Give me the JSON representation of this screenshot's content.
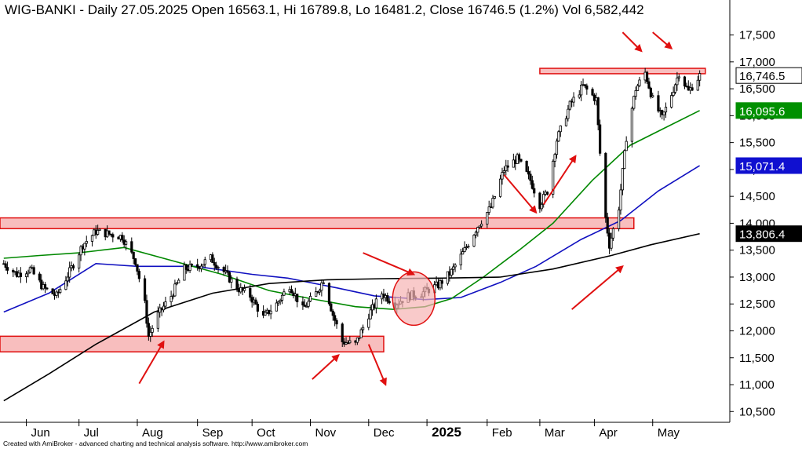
{
  "chart_data": {
    "type": "candlestick",
    "title": "WIG-BANKI - Daily 27.05.2025 Open 16563.1, Hi 16789.8, Lo 16481.2, Close 16746.5 (1.2%) Vol 6,582,442",
    "footer": "Created with AmiBroker - advanced charting and technical analysis software. http://www.amibroker.com",
    "ylim": [
      10300,
      17800
    ],
    "yticks": [
      {
        "value": 10500,
        "label": "10,500"
      },
      {
        "value": 11000,
        "label": "11,000"
      },
      {
        "value": 11500,
        "label": "11,500"
      },
      {
        "value": 12000,
        "label": "12,000"
      },
      {
        "value": 12500,
        "label": "12,500"
      },
      {
        "value": 13000,
        "label": "13,000"
      },
      {
        "value": 13500,
        "label": "13,500"
      },
      {
        "value": 14000,
        "label": "14,000"
      },
      {
        "value": 14500,
        "label": "14,500"
      },
      {
        "value": 15000,
        "label": "15,000"
      },
      {
        "value": 15500,
        "label": "15,500"
      },
      {
        "value": 16000,
        "label": "16,000"
      },
      {
        "value": 16500,
        "label": "16,500"
      },
      {
        "value": 17000,
        "label": "17,000"
      },
      {
        "value": 17500,
        "label": "17,500"
      }
    ],
    "xlim": [
      "2024-05-20",
      "2025-06-12"
    ],
    "months": [
      {
        "label": "Jun",
        "date": "2024-06-03"
      },
      {
        "label": "Jul",
        "date": "2024-07-01"
      },
      {
        "label": "Aug",
        "date": "2024-08-01"
      },
      {
        "label": "Sep",
        "date": "2024-09-02"
      },
      {
        "label": "Oct",
        "date": "2024-10-01"
      },
      {
        "label": "Nov",
        "date": "2024-11-01"
      },
      {
        "label": "Dec",
        "date": "2024-12-02"
      },
      {
        "label": "2025",
        "date": "2025-01-02",
        "bold": true
      },
      {
        "label": "Feb",
        "date": "2025-02-03"
      },
      {
        "label": "Mar",
        "date": "2025-03-03"
      },
      {
        "label": "Apr",
        "date": "2025-04-01"
      },
      {
        "label": "May",
        "date": "2025-05-02"
      }
    ],
    "close": [
      [
        "2024-05-22",
        13250
      ],
      [
        "2024-05-29",
        13050
      ],
      [
        "2024-06-05",
        13150
      ],
      [
        "2024-06-12",
        12800
      ],
      [
        "2024-06-19",
        12650
      ],
      [
        "2024-06-26",
        13100
      ],
      [
        "2024-07-03",
        13600
      ],
      [
        "2024-07-10",
        13850
      ],
      [
        "2024-07-17",
        13800
      ],
      [
        "2024-07-24",
        13750
      ],
      [
        "2024-07-31",
        13300
      ],
      [
        "2024-08-05",
        12500
      ],
      [
        "2024-08-07",
        11900
      ],
      [
        "2024-08-12",
        12300
      ],
      [
        "2024-08-19",
        12650
      ],
      [
        "2024-08-26",
        13150
      ],
      [
        "2024-09-02",
        13200
      ],
      [
        "2024-09-09",
        13350
      ],
      [
        "2024-09-16",
        13100
      ],
      [
        "2024-09-23",
        12800
      ],
      [
        "2024-09-30",
        12650
      ],
      [
        "2024-10-07",
        12250
      ],
      [
        "2024-10-14",
        12500
      ],
      [
        "2024-10-21",
        12850
      ],
      [
        "2024-10-28",
        12400
      ],
      [
        "2024-11-04",
        12700
      ],
      [
        "2024-11-08",
        12950
      ],
      [
        "2024-11-13",
        12300
      ],
      [
        "2024-11-18",
        11800
      ],
      [
        "2024-11-25",
        11750
      ],
      [
        "2024-12-02",
        12300
      ],
      [
        "2024-12-09",
        12700
      ],
      [
        "2024-12-16",
        12500
      ],
      [
        "2024-12-23",
        12650
      ],
      [
        "2024-12-30",
        12700
      ],
      [
        "2025-01-08",
        12850
      ],
      [
        "2025-01-15",
        13100
      ],
      [
        "2025-01-22",
        13500
      ],
      [
        "2025-01-29",
        13950
      ],
      [
        "2025-02-05",
        14300
      ],
      [
        "2025-02-12",
        15000
      ],
      [
        "2025-02-19",
        15200
      ],
      [
        "2025-02-26",
        14800
      ],
      [
        "2025-03-03",
        14350
      ],
      [
        "2025-03-07",
        14600
      ],
      [
        "2025-03-12",
        15550
      ],
      [
        "2025-03-19",
        16200
      ],
      [
        "2025-03-26",
        16550
      ],
      [
        "2025-04-02",
        16300
      ],
      [
        "2025-04-04",
        15300
      ],
      [
        "2025-04-07",
        14100
      ],
      [
        "2025-04-09",
        13600
      ],
      [
        "2025-04-14",
        14300
      ],
      [
        "2025-04-18",
        15600
      ],
      [
        "2025-04-23",
        16500
      ],
      [
        "2025-04-28",
        16800
      ],
      [
        "2025-05-02",
        16300
      ],
      [
        "2025-05-07",
        15950
      ],
      [
        "2025-05-12",
        16400
      ],
      [
        "2025-05-16",
        16800
      ],
      [
        "2025-05-21",
        16450
      ],
      [
        "2025-05-27",
        16746.5
      ]
    ],
    "candle_range": {
      "high_pad": 120,
      "low_pad": 120
    },
    "series": [
      {
        "type": "moving-average",
        "color": "#1010c0",
        "values": [
          [
            "2024-05-22",
            12350
          ],
          [
            "2024-06-15",
            12700
          ],
          [
            "2024-07-10",
            13250
          ],
          [
            "2024-08-01",
            13200
          ],
          [
            "2024-09-01",
            13200
          ],
          [
            "2024-10-01",
            13050
          ],
          [
            "2024-10-20",
            12980
          ],
          [
            "2024-11-15",
            12800
          ],
          [
            "2024-12-05",
            12650
          ],
          [
            "2025-01-01",
            12580
          ],
          [
            "2025-01-20",
            12620
          ],
          [
            "2025-02-10",
            12900
          ],
          [
            "2025-03-01",
            13200
          ],
          [
            "2025-03-25",
            13700
          ],
          [
            "2025-04-15",
            14050
          ],
          [
            "2025-05-05",
            14600
          ],
          [
            "2025-05-27",
            15071.4
          ]
        ]
      },
      {
        "type": "moving-average",
        "color": "#008800",
        "values": [
          [
            "2024-05-22",
            13350
          ],
          [
            "2024-06-10",
            13400
          ],
          [
            "2024-07-01",
            13450
          ],
          [
            "2024-07-25",
            13550
          ],
          [
            "2024-08-20",
            13300
          ],
          [
            "2024-09-15",
            13050
          ],
          [
            "2024-10-10",
            12750
          ],
          [
            "2024-11-01",
            12600
          ],
          [
            "2024-11-25",
            12450
          ],
          [
            "2024-12-15",
            12400
          ],
          [
            "2025-01-01",
            12450
          ],
          [
            "2025-01-15",
            12600
          ],
          [
            "2025-02-01",
            13000
          ],
          [
            "2025-02-20",
            13500
          ],
          [
            "2025-03-10",
            14000
          ],
          [
            "2025-03-31",
            14800
          ],
          [
            "2025-04-20",
            15450
          ],
          [
            "2025-05-10",
            15800
          ],
          [
            "2025-05-27",
            16095.6
          ]
        ]
      },
      {
        "type": "moving-average",
        "color": "#000000",
        "values": [
          [
            "2024-05-22",
            10700
          ],
          [
            "2024-06-15",
            11200
          ],
          [
            "2024-07-10",
            11750
          ],
          [
            "2024-08-10",
            12350
          ],
          [
            "2024-09-10",
            12700
          ],
          [
            "2024-10-10",
            12880
          ],
          [
            "2024-11-10",
            12950
          ],
          [
            "2024-12-10",
            12970
          ],
          [
            "2025-01-10",
            12980
          ],
          [
            "2025-02-10",
            13000
          ],
          [
            "2025-03-10",
            13150
          ],
          [
            "2025-04-10",
            13400
          ],
          [
            "2025-05-01",
            13600
          ],
          [
            "2025-05-27",
            13806.4
          ]
        ]
      }
    ],
    "last_value_tags": [
      {
        "label": "16,746.5",
        "value": 16746.5,
        "bg": "#ffffff",
        "fg": "#000000",
        "border": "#000000"
      },
      {
        "label": "16,095.6",
        "value": 16095.6,
        "bg": "#009000",
        "fg": "#ffffff",
        "border": "#009000"
      },
      {
        "label": "15,071.4",
        "value": 15071.4,
        "bg": "#1010d0",
        "fg": "#ffffff",
        "border": "#1010d0"
      },
      {
        "label": "13,806.4",
        "value": 13806.4,
        "bg": "#000000",
        "fg": "#ffffff",
        "border": "#000000"
      }
    ],
    "zones": [
      {
        "x0": "2024-05-20",
        "x1": "2025-04-22",
        "y0": 13900,
        "y1": 14100
      },
      {
        "x0": "2024-05-20",
        "x1": "2024-12-10",
        "y0": 11610,
        "y1": 11900
      },
      {
        "x0": "2025-03-03",
        "x1": "2025-05-30",
        "y0": 16780,
        "y1": 16880
      }
    ],
    "circle": {
      "date": "2024-12-26",
      "value": 12600,
      "rx": 27,
      "ry": 34
    },
    "arrows": [
      {
        "from": [
          "2024-08-02",
          11020
        ],
        "to": [
          "2024-08-15",
          11800
        ]
      },
      {
        "from": [
          "2024-11-02",
          11100
        ],
        "to": [
          "2024-11-16",
          11550
        ]
      },
      {
        "from": [
          "2024-12-02",
          11750
        ],
        "to": [
          "2024-12-11",
          11000
        ]
      },
      {
        "from": [
          "2024-11-29",
          13450
        ],
        "to": [
          "2024-12-26",
          13050
        ]
      },
      {
        "from": [
          "2025-02-12",
          14900
        ],
        "to": [
          "2025-03-01",
          14200
        ]
      },
      {
        "from": [
          "2025-03-05",
          14350
        ],
        "to": [
          "2025-03-22",
          15250
        ]
      },
      {
        "from": [
          "2025-03-20",
          12400
        ],
        "to": [
          "2025-04-16",
          13200
        ]
      },
      {
        "from": [
          "2025-04-16",
          17550
        ],
        "to": [
          "2025-04-26",
          17200
        ]
      },
      {
        "from": [
          "2025-05-02",
          17550
        ],
        "to": [
          "2025-05-12",
          17250
        ]
      }
    ]
  }
}
